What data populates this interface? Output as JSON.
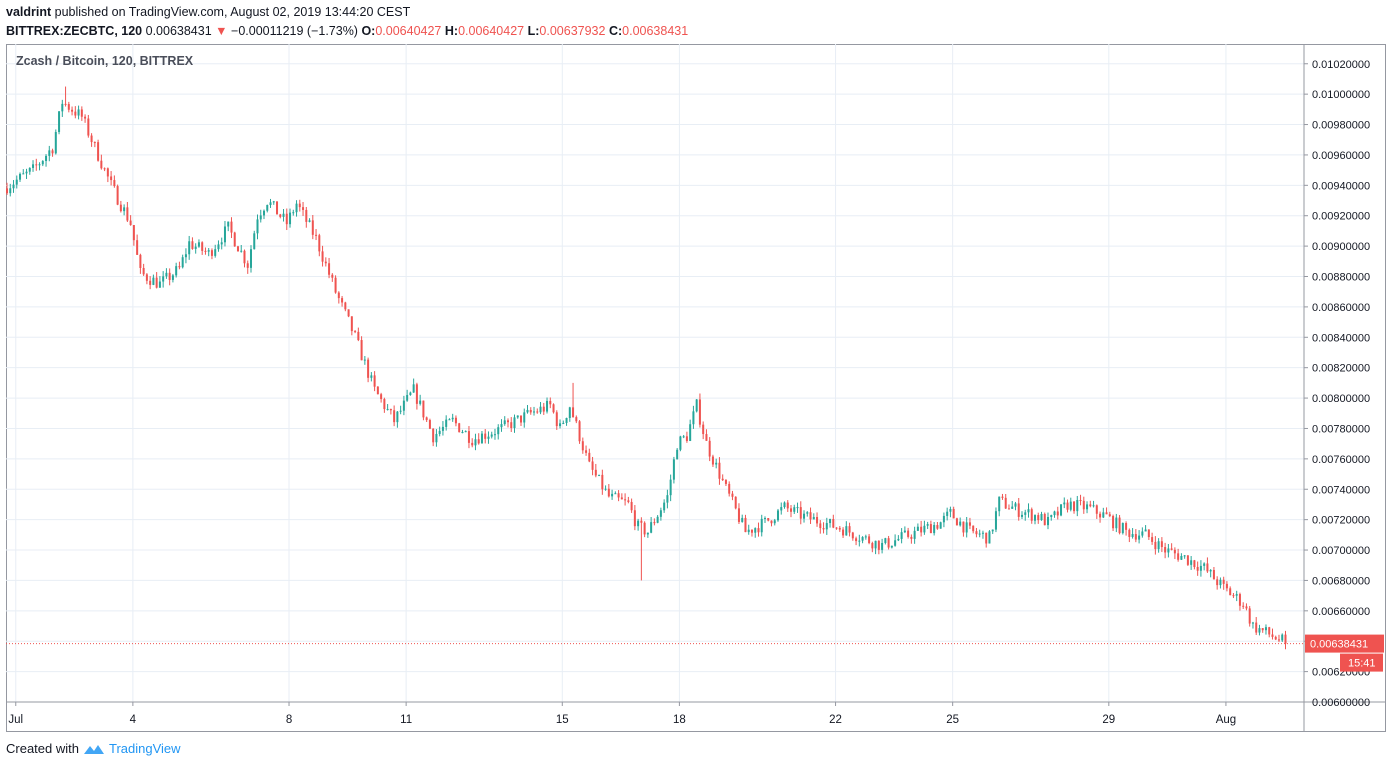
{
  "header": {
    "publisher": "valdrint",
    "published_text": "published on TradingView.com, August 02, 2019 13:44:20 CEST",
    "symbol": "BITTREX:ZECBTC, 120",
    "last": "0.00638431",
    "change": "−0.00011219 (−1.73%)",
    "open_label": "O:",
    "open": "0.00640427",
    "high_label": "H:",
    "high": "0.00640427",
    "low_label": "L:",
    "low": "0.00637932",
    "close_label": "C:",
    "close": "0.00638431"
  },
  "footer": {
    "created_with": "Created with",
    "brand": "TradingView"
  },
  "colors": {
    "up": "#26a69a",
    "down": "#ef5350",
    "grid": "#e8eef5",
    "axis_text": "#131722"
  },
  "chart_data": {
    "type": "candlestick",
    "title": "Zcash / Bitcoin, 120, BITTREX",
    "x_ticks": [
      "Jul",
      "4",
      "8",
      "11",
      "15",
      "18",
      "22",
      "25",
      "29",
      "Aug"
    ],
    "y_ticks": [
      "0.01020000",
      "0.01000000",
      "0.00980000",
      "0.00960000",
      "0.00940000",
      "0.00920000",
      "0.00900000",
      "0.00880000",
      "0.00860000",
      "0.00840000",
      "0.00820000",
      "0.00800000",
      "0.00780000",
      "0.00760000",
      "0.00740000",
      "0.00720000",
      "0.00700000",
      "0.00680000",
      "0.00660000",
      "0.00640000",
      "0.00620000",
      "0.00600000"
    ],
    "ylim": [
      0.006,
      0.01033
    ],
    "xlim": [
      "2019-06-30T18:00",
      "2019-08-03T00:00"
    ],
    "interval_minutes": 120,
    "grid": true,
    "last_price": "0.00638431",
    "countdown": "15:41",
    "path": [
      [
        "2019-06-30T18:00",
        0.00938
      ],
      [
        "2019-07-01T12:00",
        0.0095
      ],
      [
        "2019-07-02T00:00",
        0.00965
      ],
      [
        "2019-07-02T06:00",
        0.00995
      ],
      [
        "2019-07-02T18:00",
        0.00985
      ],
      [
        "2019-07-03T00:00",
        0.0097
      ],
      [
        "2019-07-03T12:00",
        0.0094
      ],
      [
        "2019-07-04T00:00",
        0.00915
      ],
      [
        "2019-07-04T06:00",
        0.00882
      ],
      [
        "2019-07-04T18:00",
        0.00875
      ],
      [
        "2019-07-05T06:00",
        0.00885
      ],
      [
        "2019-07-05T12:00",
        0.00902
      ],
      [
        "2019-07-06T00:00",
        0.00895
      ],
      [
        "2019-07-06T12:00",
        0.00912
      ],
      [
        "2019-07-07T00:00",
        0.00888
      ],
      [
        "2019-07-07T06:00",
        0.0092
      ],
      [
        "2019-07-07T12:00",
        0.0093
      ],
      [
        "2019-07-08T00:00",
        0.00915
      ],
      [
        "2019-07-08T06:00",
        0.00928
      ],
      [
        "2019-07-08T18:00",
        0.00905
      ],
      [
        "2019-07-09T06:00",
        0.0087
      ],
      [
        "2019-07-09T18:00",
        0.0084
      ],
      [
        "2019-07-10T06:00",
        0.00805
      ],
      [
        "2019-07-10T18:00",
        0.00785
      ],
      [
        "2019-07-11T00:00",
        0.00795
      ],
      [
        "2019-07-11T06:00",
        0.00805
      ],
      [
        "2019-07-11T18:00",
        0.00775
      ],
      [
        "2019-07-12T06:00",
        0.00785
      ],
      [
        "2019-07-12T18:00",
        0.00773
      ],
      [
        "2019-07-13T12:00",
        0.0078
      ],
      [
        "2019-07-14T06:00",
        0.0079
      ],
      [
        "2019-07-14T18:00",
        0.00795
      ],
      [
        "2019-07-15T00:00",
        0.0078
      ],
      [
        "2019-07-15T06:00",
        0.00795
      ],
      [
        "2019-07-15T12:00",
        0.00775
      ],
      [
        "2019-07-15T18:00",
        0.00755
      ],
      [
        "2019-07-16T06:00",
        0.00735
      ],
      [
        "2019-07-16T18:00",
        0.0073
      ],
      [
        "2019-07-17T00:00",
        0.00715
      ],
      [
        "2019-07-17T06:00",
        0.00712
      ],
      [
        "2019-07-17T18:00",
        0.00735
      ],
      [
        "2019-07-18T00:00",
        0.0077
      ],
      [
        "2019-07-18T06:00",
        0.00775
      ],
      [
        "2019-07-18T12:00",
        0.00795
      ],
      [
        "2019-07-18T18:00",
        0.0077
      ],
      [
        "2019-07-19T06:00",
        0.0074
      ],
      [
        "2019-07-19T18:00",
        0.00712
      ],
      [
        "2019-07-20T06:00",
        0.00718
      ],
      [
        "2019-07-20T18:00",
        0.00728
      ],
      [
        "2019-07-21T06:00",
        0.00722
      ],
      [
        "2019-07-21T18:00",
        0.00718
      ],
      [
        "2019-07-22T06:00",
        0.00714
      ],
      [
        "2019-07-22T18:00",
        0.00708
      ],
      [
        "2019-07-23T06:00",
        0.00703
      ],
      [
        "2019-07-23T18:00",
        0.00708
      ],
      [
        "2019-07-24T06:00",
        0.00713
      ],
      [
        "2019-07-24T18:00",
        0.00718
      ],
      [
        "2019-07-25T00:00",
        0.00724
      ],
      [
        "2019-07-25T12:00",
        0.00712
      ],
      [
        "2019-07-26T00:00",
        0.00708
      ],
      [
        "2019-07-26T06:00",
        0.00732
      ],
      [
        "2019-07-26T18:00",
        0.00726
      ],
      [
        "2019-07-27T06:00",
        0.00722
      ],
      [
        "2019-07-27T12:00",
        0.00718
      ],
      [
        "2019-07-28T00:00",
        0.0073
      ],
      [
        "2019-07-28T12:00",
        0.00728
      ],
      [
        "2019-07-29T00:00",
        0.00722
      ],
      [
        "2019-07-29T12:00",
        0.00712
      ],
      [
        "2019-07-30T00:00",
        0.0071
      ],
      [
        "2019-07-30T12:00",
        0.007
      ],
      [
        "2019-07-31T00:00",
        0.00695
      ],
      [
        "2019-07-31T12:00",
        0.00688
      ],
      [
        "2019-08-01T00:00",
        0.00675
      ],
      [
        "2019-08-01T12:00",
        0.00665
      ],
      [
        "2019-08-01T18:00",
        0.0065
      ],
      [
        "2019-08-02T12:00",
        0.0064
      ]
    ],
    "notable_wicks": [
      {
        "t": "2019-07-02T06:00",
        "high": 0.01005
      },
      {
        "t": "2019-07-15T06:00",
        "high": 0.0081
      },
      {
        "t": "2019-07-17T00:00",
        "low": 0.0068
      },
      {
        "t": "2019-07-18T12:00",
        "high": 0.008
      }
    ]
  }
}
